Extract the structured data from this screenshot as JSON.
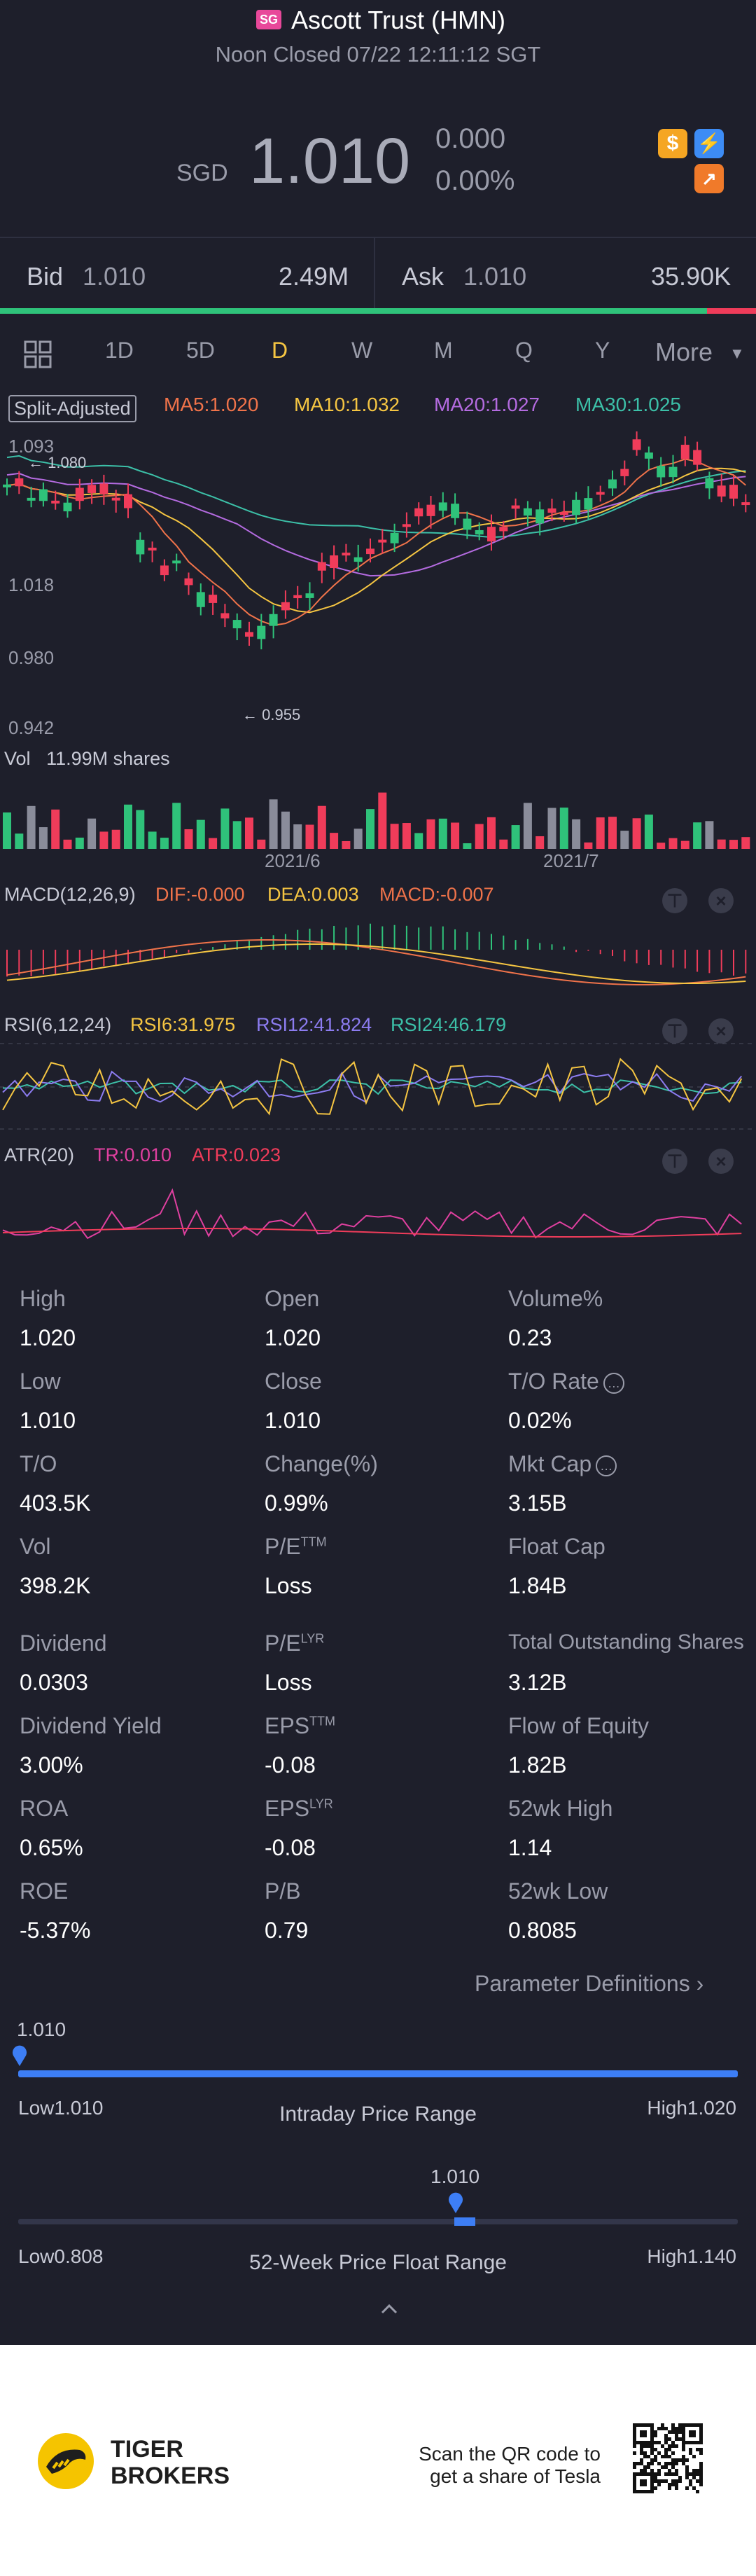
{
  "header": {
    "market_badge": "SG",
    "title": "Ascott Trust (HMN)",
    "status": "Noon Closed 07/22 12:11:12 SGT",
    "currency": "SGD",
    "price": "1.010",
    "change": "0.000",
    "change_pct": "0.00%"
  },
  "quote": {
    "bid_label": "Bid",
    "bid_price": "1.010",
    "bid_size": "2.49M",
    "ask_label": "Ask",
    "ask_price": "1.010",
    "ask_size": "35.90K",
    "bid_ratio": 0.065
  },
  "tabs": [
    "1D",
    "5D",
    "D",
    "W",
    "M",
    "Q",
    "Y"
  ],
  "active_tab": "D",
  "more_label": "More",
  "indicators": {
    "split_label": "Split-Adjusted",
    "ma5": "MA5:1.020",
    "ma10": "MA10:1.032",
    "ma20": "MA20:1.027",
    "ma30": "MA30:1.025",
    "ma_colors": {
      "ma5": "#f0734a",
      "ma10": "#f5c542",
      "ma20": "#b46be0",
      "ma30": "#3cc0a8"
    }
  },
  "price_chart": {
    "y_labels": [
      "1.093",
      "1.018",
      "0.980",
      "0.942"
    ],
    "high_marker": "1.080",
    "low_marker": "0.955",
    "date_labels": [
      "2021/6",
      "2021/7"
    ]
  },
  "volume": {
    "label": "Vol",
    "value": "11.99M shares"
  },
  "macd": {
    "label": "MACD(12,26,9)",
    "dif": "DIF:-0.000",
    "dea": "DEA:0.003",
    "macd": "MACD:-0.007"
  },
  "rsi": {
    "label": "RSI(6,12,24)",
    "rsi6": "RSI6:31.975",
    "rsi12": "RSI12:41.824",
    "rsi24": "RSI24:46.179"
  },
  "atr": {
    "label": "ATR(20)",
    "tr": "TR:0.010",
    "atr": "ATR:0.023"
  },
  "stats": {
    "c1": [
      {
        "label": "High",
        "value": "1.020"
      },
      {
        "label": "Low",
        "value": "1.010"
      },
      {
        "label": "T/O",
        "value": "403.5K"
      },
      {
        "label": "Vol",
        "value": "398.2K"
      },
      {
        "label": "Dividend",
        "value": "0.0303"
      },
      {
        "label": "Dividend Yield",
        "value": "3.00%"
      },
      {
        "label": "ROA",
        "value": "0.65%"
      },
      {
        "label": "ROE",
        "value": "-5.37%"
      }
    ],
    "c2": [
      {
        "label": "Open",
        "value": "1.020"
      },
      {
        "label": "Close",
        "value": "1.010"
      },
      {
        "label": "Change(%)",
        "value": "0.99%"
      },
      {
        "label": "P/E",
        "sup": "TTM",
        "value": "Loss"
      },
      {
        "label": "P/E",
        "sup": "LYR",
        "value": "Loss"
      },
      {
        "label": "EPS",
        "sup": "TTM",
        "value": "-0.08"
      },
      {
        "label": "EPS",
        "sup": "LYR",
        "value": "-0.08"
      },
      {
        "label": "P/B",
        "value": "0.79"
      }
    ],
    "c3": [
      {
        "label": "Volume%",
        "value": "0.23"
      },
      {
        "label": "T/O Rate",
        "value": "0.02%"
      },
      {
        "label": "Mkt Cap",
        "value": "3.15B"
      },
      {
        "label": "Float Cap",
        "value": "1.84B"
      },
      {
        "label": "Total Outstanding Shares",
        "value": "3.12B"
      },
      {
        "label": "Flow of Equity",
        "value": "1.82B"
      },
      {
        "label": "52wk High",
        "value": "1.14"
      },
      {
        "label": "52wk Low",
        "value": "0.8085"
      }
    ]
  },
  "param_link": "Parameter Definitions",
  "intraday": {
    "current": "1.010",
    "low": "Low1.010",
    "title": "Intraday Price Range",
    "high": "High1.020",
    "position": 0.0
  },
  "week52": {
    "current": "1.010",
    "low": "Low0.808",
    "title": "52-Week Price Float Range",
    "high": "High1.140",
    "position": 0.608
  },
  "footer": {
    "brand_line1": "TIGER",
    "brand_line2": "BROKERS",
    "qr_text1": "Scan the QR code to",
    "qr_text2": "get a share of Tesla"
  },
  "colors": {
    "up": "#2fc27a",
    "down": "#f03c5a",
    "accent": "#3d7ef5",
    "bg": "#1e1f2b"
  }
}
